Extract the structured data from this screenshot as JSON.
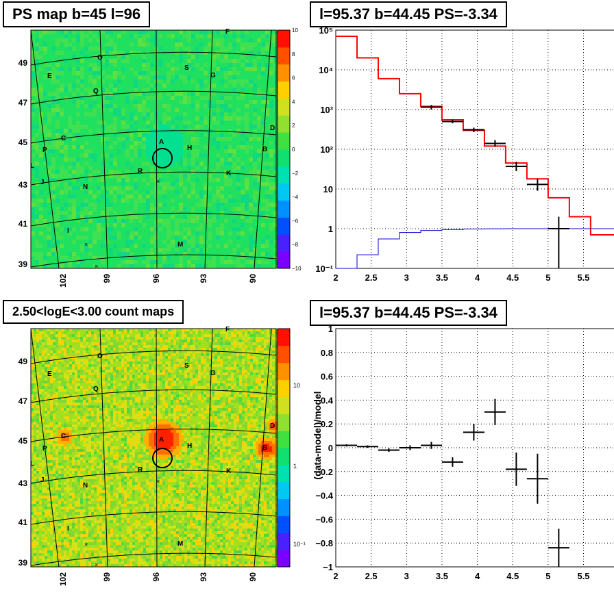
{
  "panels": {
    "ps_map": {
      "title": "PS map b=45 l=96",
      "y_ticks": [
        "49",
        "47",
        "45",
        "43",
        "41",
        "39"
      ],
      "x_ticks": [
        "102",
        "99",
        "96",
        "93",
        "90"
      ],
      "colorbar_ticks": [
        "10",
        "8",
        "6",
        "4",
        "2",
        "0",
        "−2",
        "−4",
        "−6",
        "−8",
        "−10"
      ],
      "markers": [
        {
          "t": "F",
          "x": 333,
          "y": 45
        },
        {
          "t": "O",
          "x": 146,
          "y": 83
        },
        {
          "t": "S",
          "x": 273,
          "y": 98
        },
        {
          "t": "E",
          "x": 73,
          "y": 110
        },
        {
          "t": "G",
          "x": 311,
          "y": 109
        },
        {
          "t": "Q",
          "x": 140,
          "y": 132
        },
        {
          "t": "D",
          "x": 398,
          "y": 186
        },
        {
          "t": "C",
          "x": 93,
          "y": 201
        },
        {
          "t": "A",
          "x": 236,
          "y": 206
        },
        {
          "t": "P",
          "x": 66,
          "y": 218
        },
        {
          "t": "H",
          "x": 277,
          "y": 215
        },
        {
          "t": "B",
          "x": 387,
          "y": 217
        },
        {
          "t": "L",
          "x": 48,
          "y": 241
        },
        {
          "t": "R",
          "x": 205,
          "y": 249
        },
        {
          "t": "K",
          "x": 334,
          "y": 252
        },
        {
          "t": "J",
          "x": 63,
          "y": 265
        },
        {
          "t": "N",
          "x": 125,
          "y": 272
        },
        {
          "t": "I",
          "x": 102,
          "y": 336
        },
        {
          "t": "M",
          "x": 263,
          "y": 356
        }
      ]
    },
    "count_map": {
      "title": "2.50<logE<3.00 count maps",
      "y_ticks": [
        "49",
        "47",
        "45",
        "43",
        "41",
        "39"
      ],
      "x_ticks": [
        "102",
        "99",
        "96",
        "93",
        "90"
      ],
      "colorbar_ticks": [
        "10",
        "1",
        "10⁻¹"
      ],
      "markers": [
        {
          "t": "F",
          "x": 333,
          "y": 480
        },
        {
          "t": "O",
          "x": 146,
          "y": 519
        },
        {
          "t": "S",
          "x": 273,
          "y": 533
        },
        {
          "t": "E",
          "x": 73,
          "y": 545
        },
        {
          "t": "G",
          "x": 311,
          "y": 544
        },
        {
          "t": "Q",
          "x": 140,
          "y": 567
        },
        {
          "t": "D",
          "x": 398,
          "y": 621
        },
        {
          "t": "C",
          "x": 93,
          "y": 636
        },
        {
          "t": "A",
          "x": 236,
          "y": 641
        },
        {
          "t": "P",
          "x": 66,
          "y": 654
        },
        {
          "t": "H",
          "x": 277,
          "y": 650
        },
        {
          "t": "B",
          "x": 387,
          "y": 653
        },
        {
          "t": "L",
          "x": 48,
          "y": 676
        },
        {
          "t": "R",
          "x": 205,
          "y": 685
        },
        {
          "t": "K",
          "x": 334,
          "y": 687
        },
        {
          "t": "J",
          "x": 63,
          "y": 700
        },
        {
          "t": "N",
          "x": 125,
          "y": 708
        },
        {
          "t": "I",
          "x": 102,
          "y": 771
        },
        {
          "t": "M",
          "x": 263,
          "y": 793
        }
      ]
    },
    "spectrum": {
      "title": "l=95.37 b=44.45 PS=-3.34"
    },
    "residual": {
      "title": "l=95.37 b=44.45 PS=-3.34",
      "ylabel": "(data-model)/model"
    }
  },
  "chart_data": [
    {
      "type": "heatmap",
      "title": "PS map b=45 l=96",
      "ylabel": "",
      "xlabel": "",
      "y_ticks": [
        49,
        47,
        45,
        43,
        41,
        39
      ],
      "x_ticks": [
        102,
        99,
        96,
        93,
        90
      ],
      "colorbar_range": [
        -10,
        10
      ],
      "colors": {
        "low": "#7a00ff",
        "mid": "#00e05a",
        "high": "#ff0000"
      }
    },
    {
      "type": "heatmap",
      "title": "2.50<logE<3.00 count maps",
      "y_ticks": [
        49,
        47,
        45,
        43,
        41,
        39
      ],
      "x_ticks": [
        102,
        99,
        96,
        93,
        90
      ],
      "colorbar_scale": "log",
      "colorbar_ticks": [
        0.1,
        1,
        10
      ],
      "hot_spots": [
        "A",
        "B",
        "C",
        "D"
      ]
    },
    {
      "type": "line",
      "title": "l=95.37 b=44.45 PS=-3.34",
      "xlim": [
        2,
        5.95
      ],
      "ylim": [
        0.1,
        100000
      ],
      "yscale": "log",
      "x_ticks": [
        "2",
        "2.5",
        "3",
        "3.5",
        "4",
        "4.5",
        "5",
        "5.5"
      ],
      "y_ticks": [
        "10⁻¹",
        "1",
        "10",
        "10²",
        "10³",
        "10⁴",
        "10⁵"
      ],
      "grid": true,
      "bin_edges": [
        2.0,
        2.3,
        2.6,
        2.9,
        3.2,
        3.5,
        3.8,
        4.1,
        4.4,
        4.7,
        5.0,
        5.3,
        5.6,
        5.95
      ],
      "series": [
        {
          "color": "#ff0000",
          "values": [
            70000,
            20000,
            6000,
            2500,
            1200,
            550,
            300,
            120,
            45,
            18,
            6,
            2,
            0.7
          ]
        },
        {
          "color": "#0000cc",
          "values": [
            0.1,
            0.22,
            0.55,
            0.8,
            0.9,
            0.95,
            0.98,
            0.99,
            1.0,
            1.0,
            1.0,
            1.0,
            1.0
          ]
        }
      ],
      "data_points": [
        {
          "x": 3.35,
          "y": 1150,
          "xerr": 0.15,
          "ylo": 1000,
          "yhi": 1300
        },
        {
          "x": 3.65,
          "y": 500,
          "xerr": 0.15,
          "ylo": 450,
          "yhi": 560
        },
        {
          "x": 3.95,
          "y": 310,
          "xerr": 0.15,
          "ylo": 270,
          "yhi": 350
        },
        {
          "x": 4.25,
          "y": 140,
          "xerr": 0.15,
          "ylo": 115,
          "yhi": 170
        },
        {
          "x": 4.55,
          "y": 37,
          "xerr": 0.15,
          "ylo": 28,
          "yhi": 48
        },
        {
          "x": 4.85,
          "y": 13,
          "xerr": 0.15,
          "ylo": 9,
          "yhi": 18
        },
        {
          "x": 5.15,
          "y": 1,
          "xerr": 0.15,
          "ylo": 0.1,
          "yhi": 2
        }
      ]
    },
    {
      "type": "scatter",
      "title": "l=95.37 b=44.45 PS=-3.34",
      "ylabel": "(data-model)/model",
      "xlim": [
        2,
        5.95
      ],
      "ylim": [
        -1,
        1
      ],
      "x_ticks": [
        "2",
        "2.5",
        "3",
        "3.5",
        "4",
        "4.5",
        "5",
        "5.5"
      ],
      "y_ticks": [
        "1",
        "0.8",
        "0.6",
        "0.4",
        "0.2",
        "0",
        "−0.2",
        "−0.4",
        "−0.6",
        "−0.8",
        "−1"
      ],
      "grid": true,
      "points": [
        {
          "x": 2.15,
          "y": 0.02,
          "xerr": 0.15,
          "yerr": 0.01
        },
        {
          "x": 2.45,
          "y": 0.01,
          "xerr": 0.15,
          "yerr": 0.01
        },
        {
          "x": 2.75,
          "y": -0.02,
          "xerr": 0.15,
          "yerr": 0.015
        },
        {
          "x": 3.05,
          "y": 0.0,
          "xerr": 0.15,
          "yerr": 0.02
        },
        {
          "x": 3.35,
          "y": 0.02,
          "xerr": 0.15,
          "yerr": 0.03
        },
        {
          "x": 3.65,
          "y": -0.12,
          "xerr": 0.15,
          "yerr": 0.04
        },
        {
          "x": 3.95,
          "y": 0.13,
          "xerr": 0.15,
          "yerr": 0.07
        },
        {
          "x": 4.25,
          "y": 0.3,
          "xerr": 0.15,
          "yerr": 0.11
        },
        {
          "x": 4.55,
          "y": -0.18,
          "xerr": 0.15,
          "yerr": 0.14
        },
        {
          "x": 4.85,
          "y": -0.26,
          "xerr": 0.15,
          "yerr": 0.21
        },
        {
          "x": 5.15,
          "y": -0.84,
          "xerr": 0.15,
          "yerr": 0.16
        }
      ]
    }
  ]
}
